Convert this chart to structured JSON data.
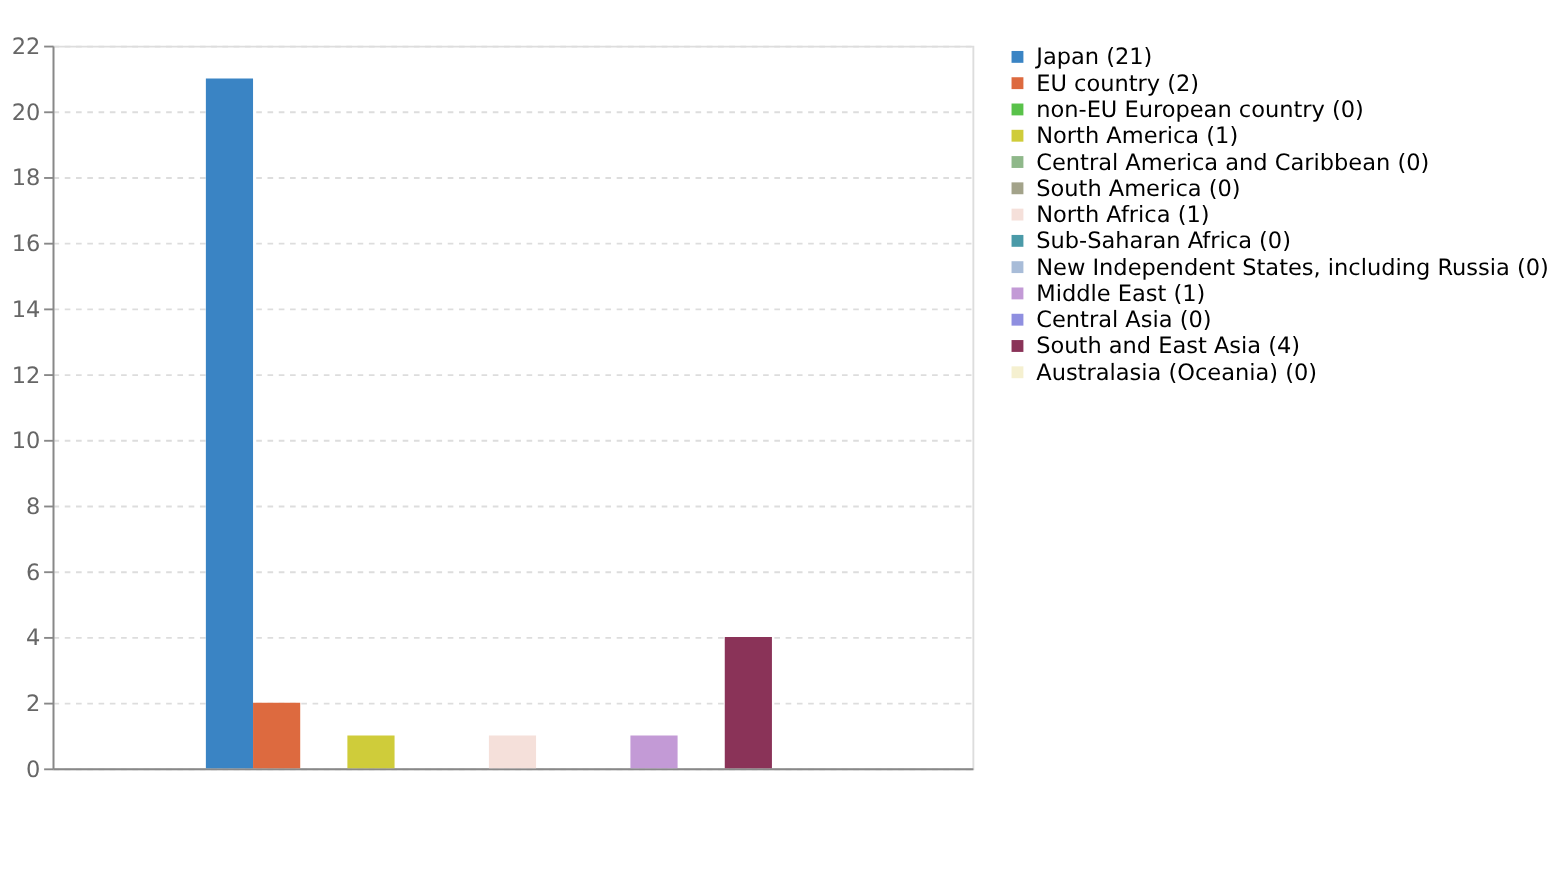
{
  "chart_data": {
    "type": "bar",
    "categories": [
      null
    ],
    "series": [
      {
        "name": "Japan (21)",
        "color": "#3a84c4",
        "values": [
          21
        ]
      },
      {
        "name": "EU country (2)",
        "color": "#dd6a3f",
        "values": [
          2
        ]
      },
      {
        "name": "non-EU European country (0)",
        "color": "#59c24a",
        "values": [
          0
        ]
      },
      {
        "name": "North America (1)",
        "color": "#cfcc3a",
        "values": [
          1
        ]
      },
      {
        "name": "Central America and Caribbean (0)",
        "color": "#8fb88a",
        "values": [
          0
        ]
      },
      {
        "name": "South America (0)",
        "color": "#a3a38a",
        "values": [
          0
        ]
      },
      {
        "name": "North Africa (1)",
        "color": "#f5e0da",
        "values": [
          1
        ]
      },
      {
        "name": "Sub-Saharan Africa (0)",
        "color": "#4a9aa8",
        "values": [
          0
        ]
      },
      {
        "name": "New Independent States, including Russia (0)",
        "color": "#a8bcd8",
        "values": [
          0
        ]
      },
      {
        "name": "Middle East (1)",
        "color": "#c39ad6",
        "values": [
          1
        ]
      },
      {
        "name": "Central Asia (0)",
        "color": "#8f8fe0",
        "values": [
          0
        ]
      },
      {
        "name": "South and East Asia (4)",
        "color": "#8a3358",
        "values": [
          4
        ]
      },
      {
        "name": "Australasia (Oceania) (0)",
        "color": "#f5f0d0",
        "values": [
          0
        ]
      }
    ],
    "ylim": [
      0,
      22
    ],
    "yticks": [
      0,
      2,
      4,
      6,
      8,
      10,
      12,
      14,
      16,
      18,
      20,
      22
    ],
    "grid": "y",
    "legend": "right"
  }
}
